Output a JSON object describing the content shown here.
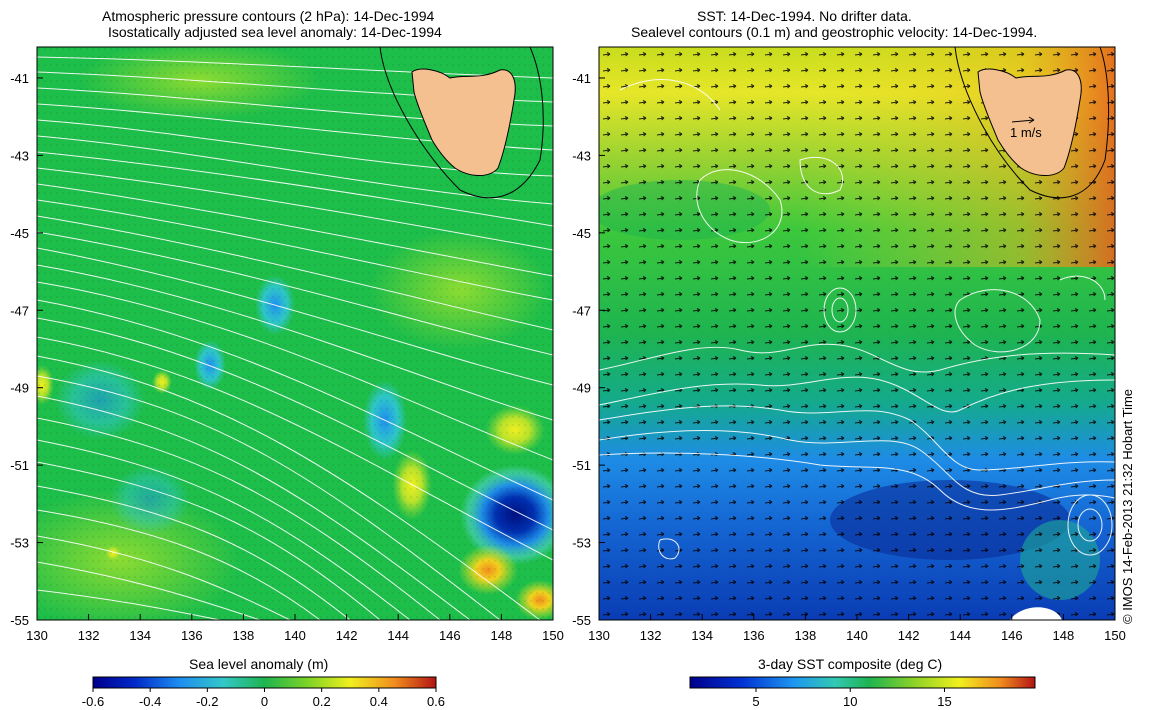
{
  "left_panel": {
    "title_line1": "Atmospheric pressure contours (2 hPa): 14-Dec-1994",
    "title_line2": "Isostatically adjusted sea level anomaly: 14-Dec-1994",
    "colorbar_label": "Sea level anomaly (m)",
    "colorbar_ticks": [
      "-0.6",
      "-0.4",
      "-0.2",
      "0",
      "0.2",
      "0.4",
      "0.6"
    ]
  },
  "right_panel": {
    "title_line1": "SST: 14-Dec-1994. No drifter data.",
    "title_line2": "Sealevel contours (0.1 m) and geostrophic velocity: 14-Dec-1994.",
    "colorbar_label": "3-day SST composite (deg C)",
    "colorbar_ticks": [
      "5",
      "10",
      "15"
    ],
    "velocity_scale_label": "1 m/s"
  },
  "axes": {
    "x_ticks": [
      "130",
      "132",
      "134",
      "136",
      "138",
      "140",
      "142",
      "144",
      "146",
      "148",
      "150"
    ],
    "y_ticks": [
      "-41",
      "-43",
      "-45",
      "-47",
      "-49",
      "-51",
      "-53",
      "-55"
    ],
    "lon_range": [
      130,
      150
    ],
    "lat_range": [
      -55,
      -40.2
    ]
  },
  "copyright": "© IMOS 14-Feb-2013 21:32 Hobart Time",
  "colors": {
    "land": "#f5c08f",
    "contour": "#ffffff",
    "coastline": "#000000"
  }
}
